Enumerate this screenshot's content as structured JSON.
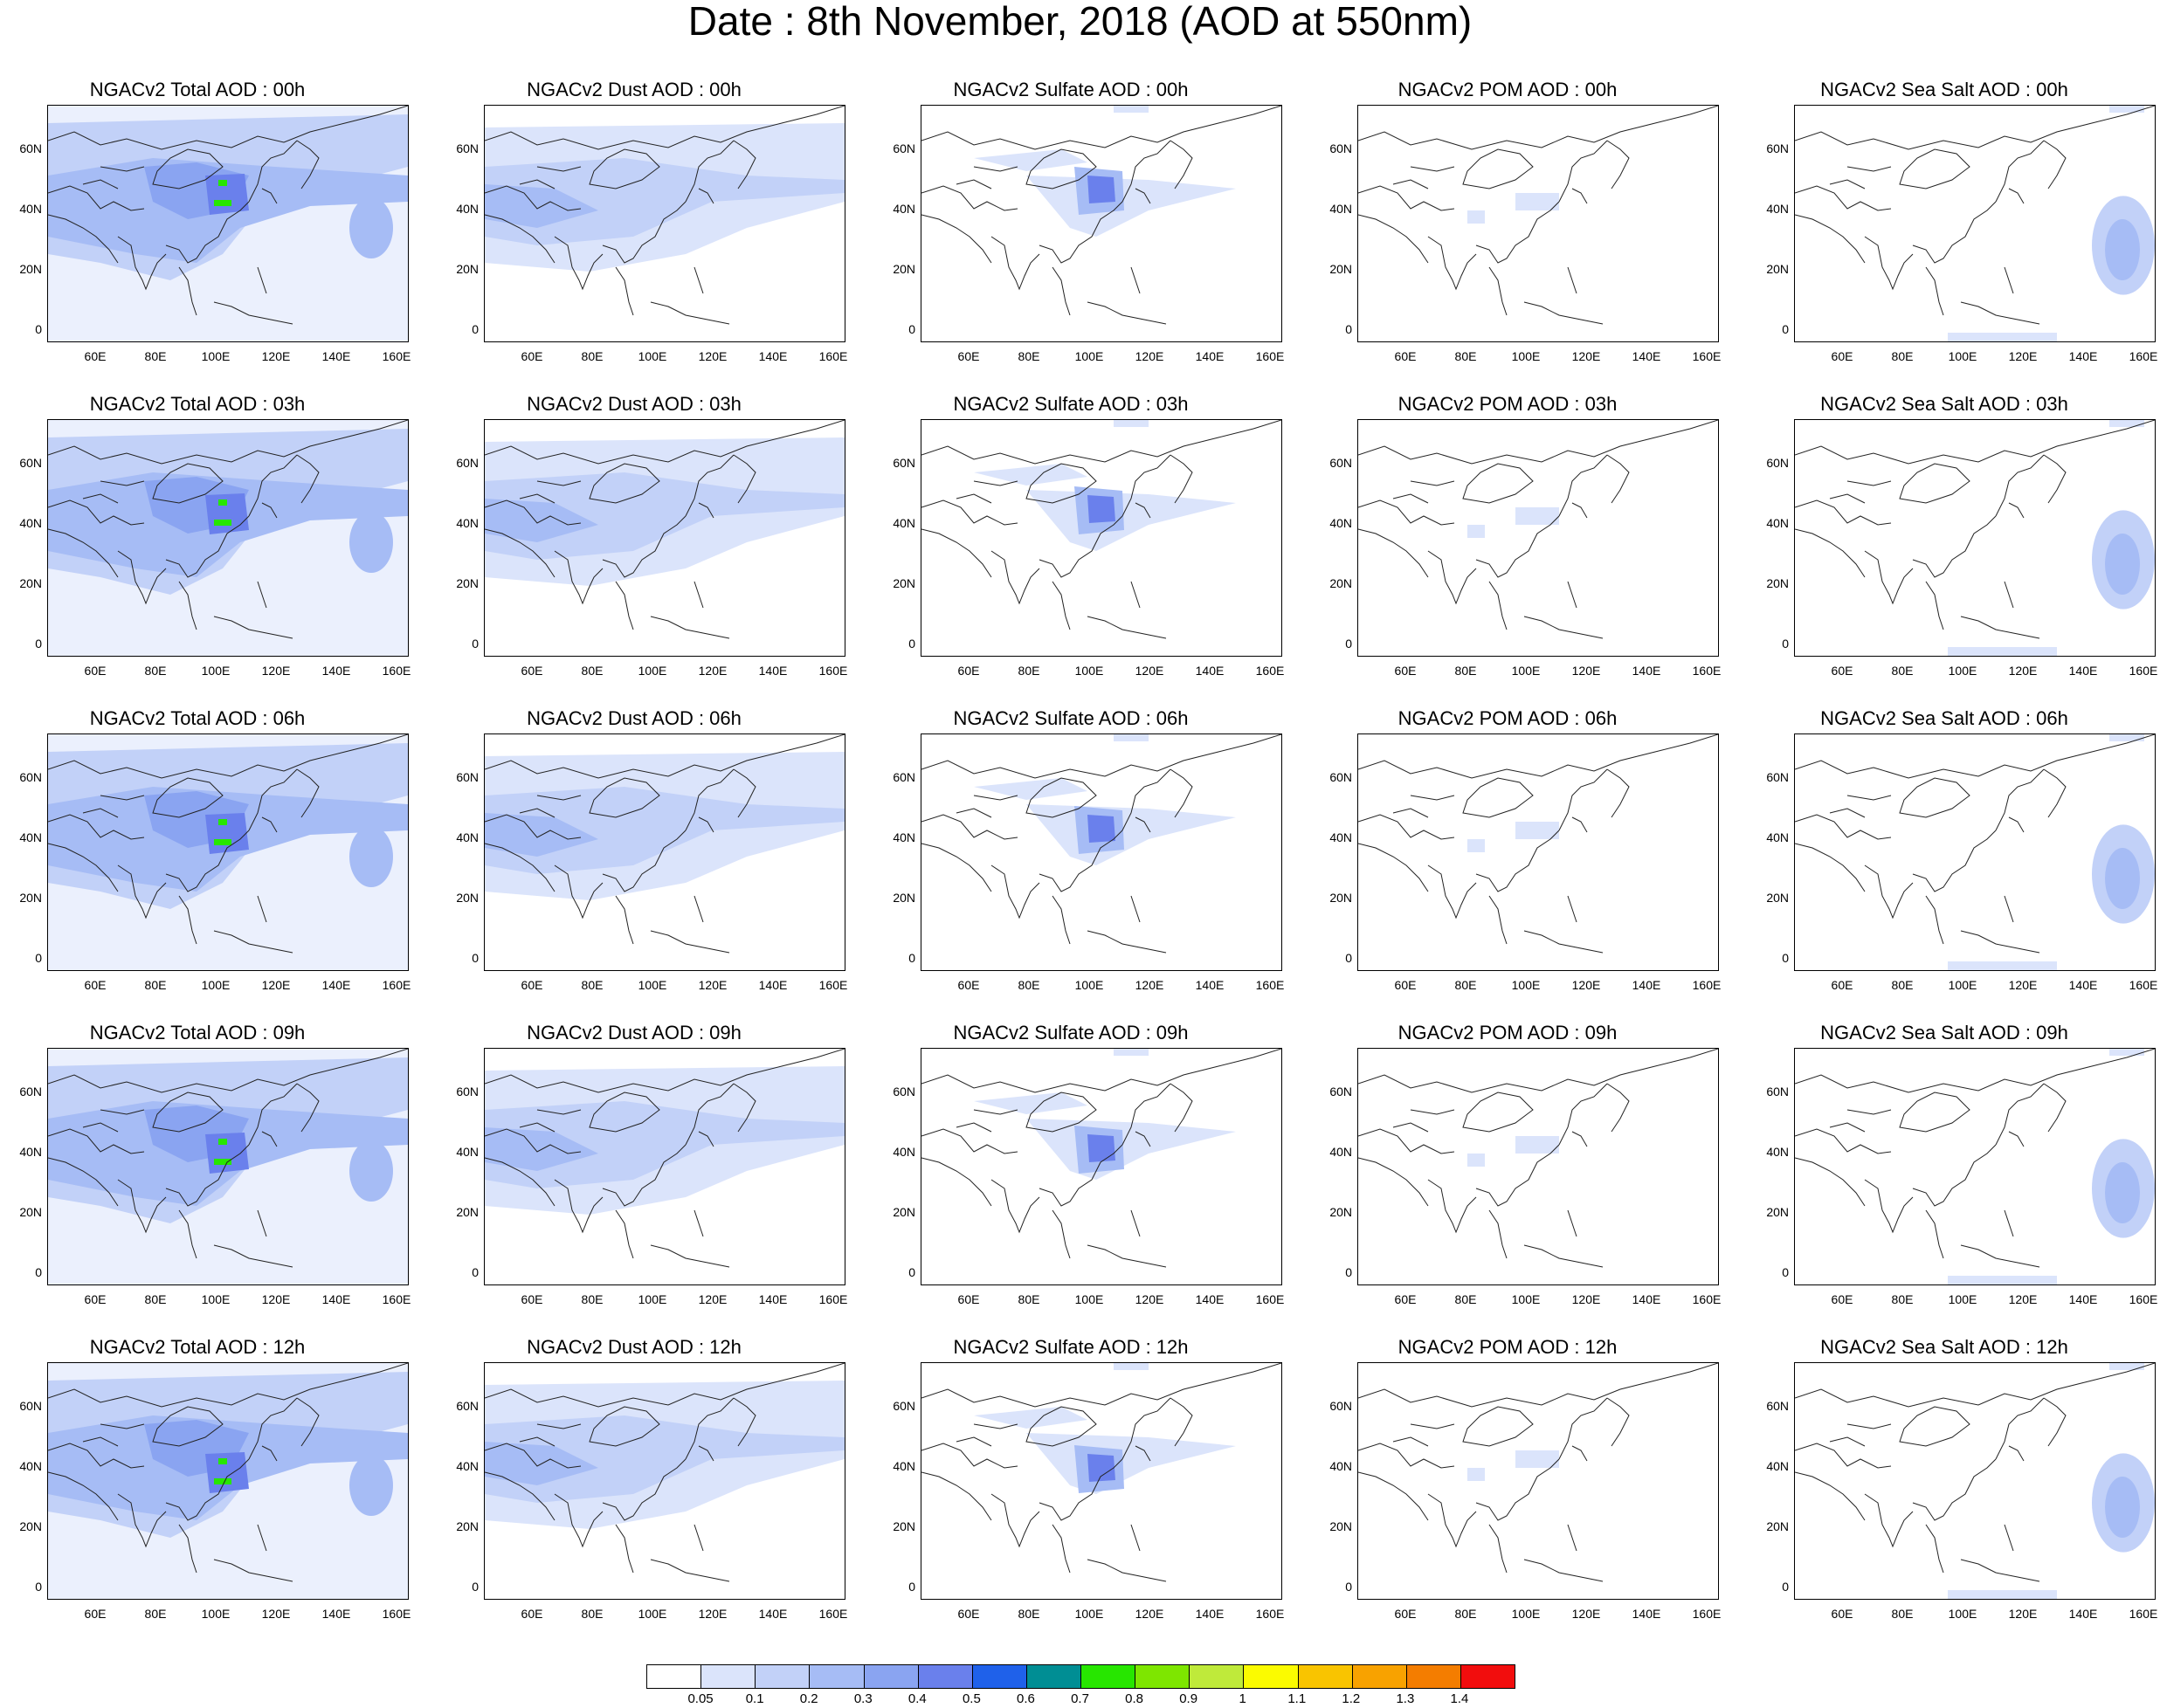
{
  "title": "Date : 8th November, 2018 (AOD at 550nm)",
  "lat_ticks": [
    "60N",
    "40N",
    "20N",
    "0"
  ],
  "lon_ticks": [
    "60E",
    "80E",
    "100E",
    "120E",
    "140E",
    "160E"
  ],
  "panels": [
    [
      "NGACv2 Total AOD : 00h",
      "NGACv2 Dust AOD : 00h",
      "NGACv2 Sulfate AOD : 00h",
      "NGACv2 POM AOD : 00h",
      "NGACv2 Sea Salt AOD : 00h"
    ],
    [
      "NGACv2 Total AOD : 03h",
      "NGACv2 Dust AOD : 03h",
      "NGACv2 Sulfate AOD : 03h",
      "NGACv2 POM AOD : 03h",
      "NGACv2 Sea Salt AOD : 03h"
    ],
    [
      "NGACv2 Total AOD : 06h",
      "NGACv2 Dust AOD : 06h",
      "NGACv2 Sulfate AOD : 06h",
      "NGACv2 POM AOD : 06h",
      "NGACv2 Sea Salt AOD : 06h"
    ],
    [
      "NGACv2 Total AOD : 09h",
      "NGACv2 Dust AOD : 09h",
      "NGACv2 Sulfate AOD : 09h",
      "NGACv2 POM AOD : 09h",
      "NGACv2 Sea Salt  AOD : 09h"
    ],
    [
      "NGACv2 Total AOD  : 12h",
      "NGACv2 Dust AOD : 12h",
      "NGACv2 Sulfate AOD : 12h",
      "NGACv2 POM  AOD : 12h",
      "NGACv2 Sea Salt  AOD : 12h"
    ]
  ],
  "colorbar": {
    "labels": [
      "0.05",
      "0.1",
      "0.2",
      "0.3",
      "0.4",
      "0.5",
      "0.6",
      "0.7",
      "0.8",
      "0.9",
      "1",
      "1.1",
      "1.2",
      "1.3",
      "1.4"
    ],
    "colors": [
      "#ffffff",
      "#dbe4fb",
      "#c2d1f8",
      "#a6bcf5",
      "#8aa4f1",
      "#6a80ec",
      "#1f61ea",
      "#008e94",
      "#27e600",
      "#7ee600",
      "#bfea3a",
      "#fbfb00",
      "#f9c400",
      "#f8a200",
      "#f47d00",
      "#f20d0d"
    ]
  },
  "colors": {
    "aod_light": "#dbe4fb",
    "aod_mid": "#a6bcf5",
    "aod_high": "#6a80ec",
    "aod_peak": "#27e600",
    "coast": "#222222"
  }
}
